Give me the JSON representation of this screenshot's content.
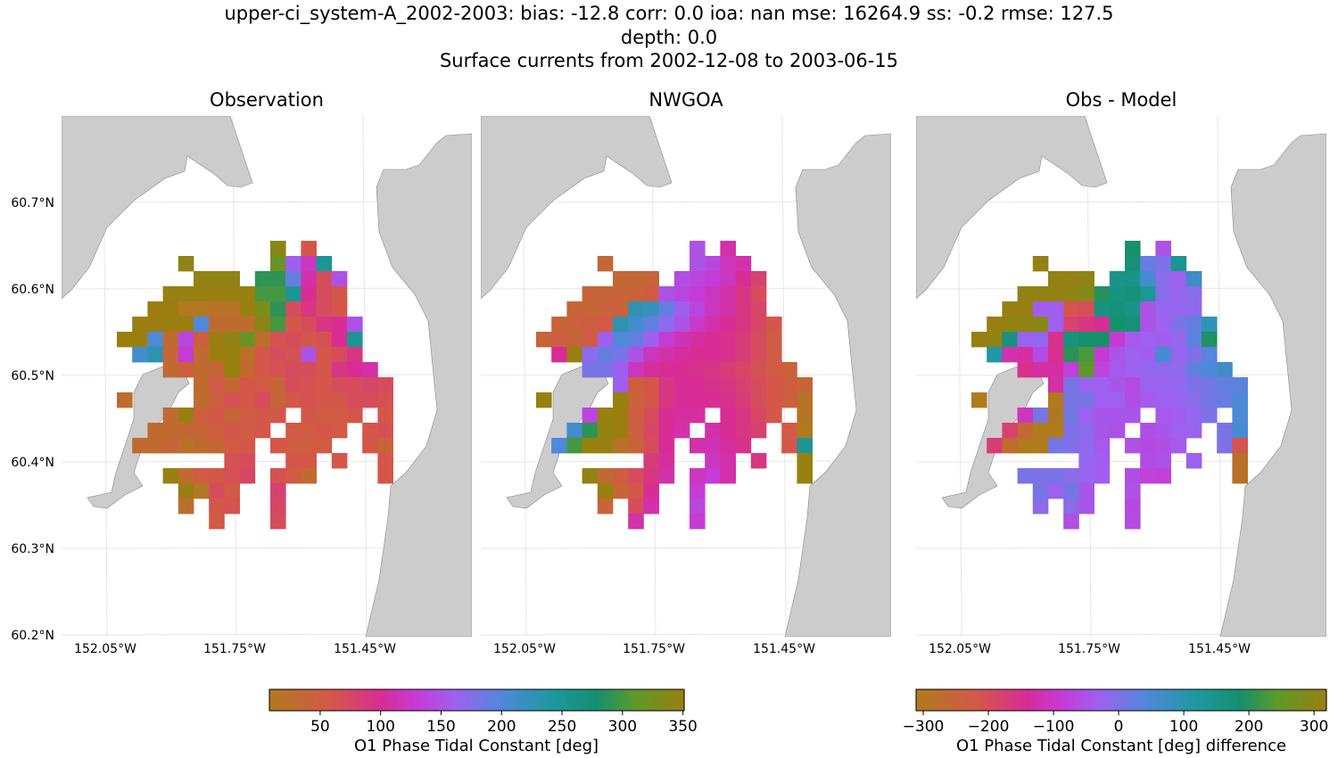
{
  "title": {
    "line1": "upper-ci_system-A_2002-2003: bias: -12.8  corr: 0.0  ioa: nan  mse: 16264.9  ss: -0.2  rmse: 127.5",
    "line2": "depth: 0.0",
    "line3": "Surface currents from 2002-12-08 to 2003-06-15"
  },
  "colors": {
    "land": "#cccccc",
    "coast": "#888888",
    "grid": "#e6e6e6"
  },
  "chart_data": [
    {
      "type": "heatmap",
      "title": "Observation",
      "panels_shared": true,
      "xlabel_ticks": [
        "152.05°W",
        "151.75°W",
        "151.45°W"
      ],
      "ylabel_ticks": [
        "60.7°N",
        "60.6°N",
        "60.5°N",
        "60.4°N",
        "60.3°N",
        "60.2°N"
      ],
      "colorbar": {
        "label": "O1 Phase Tidal Constant [deg]",
        "ticks": [
          50,
          100,
          150,
          200,
          250,
          300,
          350
        ],
        "range": [
          8,
          351
        ]
      },
      "grid": true,
      "values": [
        [
          null,
          null,
          null,
          null,
          null,
          null,
          null,
          null,
          null,
          null,
          340,
          null,
          60,
          null,
          null,
          null,
          null,
          null
        ],
        [
          null,
          null,
          null,
          null,
          345,
          null,
          null,
          null,
          null,
          null,
          320,
          160,
          120,
          250,
          null,
          null,
          null,
          null
        ],
        [
          null,
          null,
          null,
          null,
          null,
          345,
          345,
          345,
          null,
          290,
          290,
          190,
          110,
          70,
          150,
          null,
          null,
          null
        ],
        [
          null,
          null,
          null,
          350,
          350,
          350,
          350,
          350,
          350,
          300,
          300,
          250,
          100,
          70,
          60,
          null,
          null,
          null
        ],
        [
          null,
          null,
          355,
          355,
          10,
          10,
          20,
          20,
          350,
          330,
          290,
          70,
          90,
          70,
          60,
          null,
          null,
          null
        ],
        [
          null,
          355,
          355,
          355,
          355,
          200,
          30,
          30,
          30,
          340,
          300,
          60,
          70,
          90,
          100,
          150,
          null,
          null
        ],
        [
          355,
          355,
          200,
          30,
          140,
          50,
          355,
          345,
          320,
          25,
          65,
          70,
          60,
          65,
          100,
          250,
          null,
          null
        ],
        [
          null,
          210,
          230,
          40,
          130,
          30,
          355,
          350,
          20,
          60,
          70,
          65,
          150,
          60,
          70,
          90,
          null,
          null
        ],
        [
          null,
          null,
          null,
          30,
          50,
          30,
          40,
          350,
          30,
          60,
          65,
          70,
          70,
          60,
          90,
          100,
          110,
          null
        ],
        [
          null,
          null,
          null,
          null,
          null,
          30,
          55,
          35,
          60,
          55,
          40,
          70,
          65,
          60,
          70,
          70,
          75,
          70
        ],
        [
          30,
          null,
          null,
          null,
          null,
          30,
          50,
          65,
          60,
          70,
          40,
          60,
          65,
          60,
          60,
          70,
          70,
          65
        ],
        [
          null,
          null,
          null,
          30,
          355,
          50,
          60,
          40,
          55,
          60,
          60,
          null,
          60,
          55,
          55,
          60,
          null,
          60
        ],
        [
          null,
          null,
          30,
          30,
          35,
          40,
          50,
          60,
          55,
          60,
          null,
          55,
          55,
          60,
          55,
          null,
          60,
          65
        ],
        [
          null,
          30,
          30,
          40,
          20,
          30,
          35,
          55,
          60,
          null,
          60,
          50,
          50,
          55,
          null,
          null,
          60,
          40
        ],
        [
          null,
          null,
          null,
          null,
          null,
          null,
          null,
          65,
          70,
          null,
          null,
          60,
          60,
          null,
          60,
          null,
          null,
          60
        ],
        [
          null,
          null,
          null,
          350,
          30,
          55,
          60,
          65,
          75,
          null,
          65,
          55,
          30,
          null,
          null,
          null,
          null,
          60
        ],
        [
          null,
          null,
          null,
          null,
          355,
          10,
          70,
          55,
          null,
          null,
          80,
          null,
          null,
          null,
          null,
          null,
          null,
          null
        ],
        [
          null,
          null,
          null,
          null,
          25,
          null,
          60,
          65,
          null,
          null,
          75,
          null,
          null,
          null,
          null,
          null,
          null,
          null
        ],
        [
          null,
          null,
          null,
          null,
          null,
          null,
          55,
          null,
          null,
          null,
          70,
          null,
          null,
          null,
          null,
          null,
          null,
          null
        ]
      ]
    },
    {
      "type": "heatmap",
      "title": "NWGOA",
      "xlabel_ticks": [
        "152.05°W",
        "151.75°W",
        "151.45°W"
      ],
      "values": [
        [
          null,
          null,
          null,
          null,
          null,
          null,
          null,
          null,
          null,
          null,
          150,
          null,
          110,
          null,
          null,
          null,
          null,
          null
        ],
        [
          null,
          null,
          null,
          null,
          35,
          null,
          null,
          null,
          null,
          null,
          150,
          140,
          120,
          110,
          null,
          null,
          null,
          null
        ],
        [
          null,
          null,
          null,
          null,
          null,
          35,
          35,
          40,
          null,
          145,
          140,
          130,
          120,
          100,
          80,
          null,
          null,
          null
        ],
        [
          null,
          null,
          null,
          40,
          40,
          40,
          45,
          55,
          150,
          140,
          130,
          120,
          110,
          90,
          70,
          null,
          null,
          null
        ],
        [
          null,
          null,
          40,
          40,
          45,
          45,
          230,
          220,
          190,
          160,
          140,
          120,
          110,
          90,
          75,
          null,
          null,
          null
        ],
        [
          null,
          40,
          45,
          50,
          55,
          230,
          210,
          190,
          170,
          150,
          125,
          110,
          100,
          90,
          75,
          60,
          null,
          null
        ],
        [
          40,
          50,
          40,
          55,
          160,
          200,
          190,
          160,
          130,
          115,
          105,
          100,
          95,
          85,
          70,
          55,
          null,
          null
        ],
        [
          null,
          100,
          350,
          170,
          190,
          180,
          150,
          120,
          110,
          105,
          100,
          100,
          95,
          85,
          70,
          55,
          null,
          null
        ],
        [
          null,
          null,
          null,
          180,
          180,
          160,
          120,
          105,
          100,
          100,
          95,
          90,
          85,
          75,
          65,
          55,
          45,
          null
        ],
        [
          null,
          null,
          null,
          null,
          null,
          160,
          50,
          60,
          90,
          100,
          100,
          95,
          90,
          80,
          70,
          60,
          50,
          40
        ],
        [
          350,
          null,
          null,
          null,
          null,
          350,
          45,
          60,
          90,
          100,
          100,
          100,
          95,
          85,
          70,
          60,
          50,
          20
        ],
        [
          null,
          null,
          null,
          140,
          350,
          355,
          50,
          70,
          100,
          105,
          105,
          null,
          100,
          90,
          75,
          60,
          null,
          15
        ],
        [
          null,
          null,
          210,
          290,
          345,
          355,
          50,
          75,
          100,
          110,
          null,
          110,
          100,
          90,
          80,
          null,
          55,
          10
        ],
        [
          null,
          200,
          300,
          350,
          350,
          20,
          40,
          70,
          100,
          null,
          110,
          115,
          105,
          95,
          null,
          null,
          60,
          250
        ],
        [
          null,
          null,
          null,
          null,
          null,
          null,
          null,
          85,
          105,
          null,
          null,
          120,
          110,
          null,
          90,
          null,
          null,
          350
        ],
        [
          null,
          null,
          null,
          345,
          30,
          50,
          70,
          90,
          110,
          null,
          120,
          130,
          110,
          null,
          null,
          null,
          null,
          350
        ],
        [
          null,
          null,
          null,
          null,
          350,
          40,
          60,
          100,
          null,
          null,
          130,
          null,
          null,
          null,
          null,
          null,
          null,
          null
        ],
        [
          null,
          null,
          null,
          null,
          40,
          null,
          70,
          110,
          null,
          null,
          140,
          null,
          null,
          null,
          null,
          null,
          null,
          null
        ],
        [
          null,
          null,
          null,
          null,
          null,
          null,
          110,
          null,
          null,
          null,
          130,
          null,
          null,
          null,
          null,
          null,
          null,
          null
        ]
      ]
    },
    {
      "type": "heatmap",
      "title": "Obs - Model",
      "xlabel_ticks": [
        "152.05°W",
        "151.75°W",
        "151.45°W"
      ],
      "colorbar": {
        "label": "O1 Phase Tidal Constant [deg] difference",
        "ticks": [
          -300,
          -200,
          -100,
          0,
          100,
          200,
          300
        ],
        "tick_labels": [
          "−300",
          "−200",
          "−100",
          "0",
          "100",
          "200",
          "300"
        ],
        "range": [
          -311,
          319
        ]
      }
    }
  ]
}
